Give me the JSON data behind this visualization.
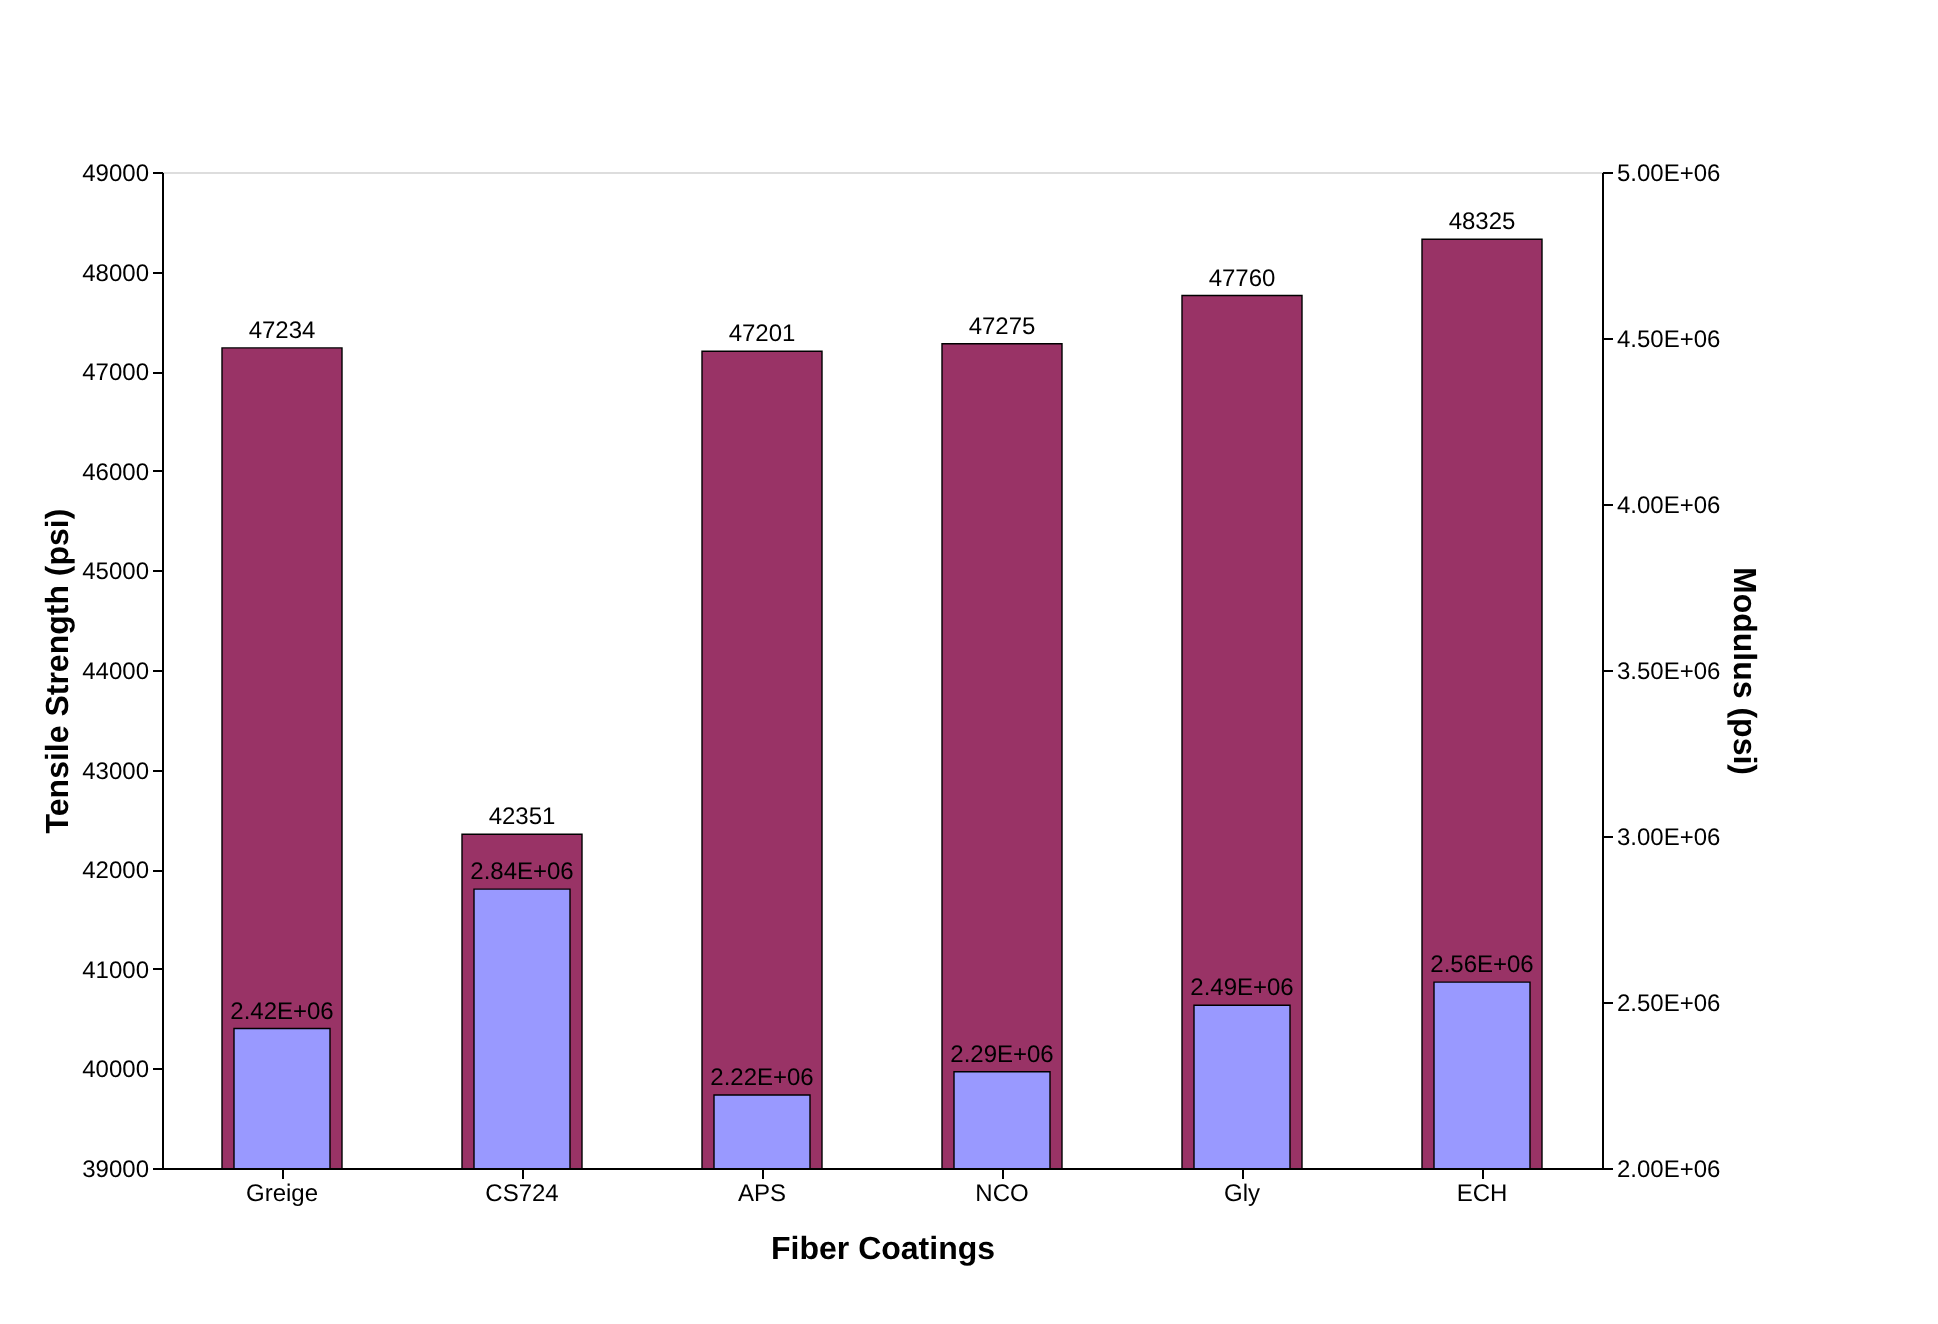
{
  "chart_data": {
    "type": "bar",
    "xlabel": "Fiber Coatings",
    "ylabel": "Tensile Strength (psi)",
    "y2label": "Modulus (psi)",
    "categories": [
      "Greige",
      "CS724",
      "APS",
      "NCO",
      "Gly",
      "ECH"
    ],
    "series": [
      {
        "color": "#993366",
        "values": [
          47234,
          42351,
          47201,
          47275,
          47760,
          48325
        ],
        "value_labels": [
          "47234",
          "42351",
          "47201",
          "47275",
          "47760",
          "48325"
        ]
      },
      {
        "color": "#9999ff",
        "axis": "y2",
        "values": [
          2420000,
          2840000,
          2220000,
          2290000,
          2490000,
          2560000
        ],
        "value_labels": [
          "2.42E+06",
          "2.84E+06",
          "2.22E+06",
          "2.29E+06",
          "2.49E+06",
          "2.56E+06"
        ]
      }
    ],
    "ylim": [
      39000,
      49000
    ],
    "yticks": [
      39000,
      40000,
      41000,
      42000,
      43000,
      44000,
      45000,
      46000,
      47000,
      48000,
      49000
    ],
    "y2lim": [
      2000000,
      5000000
    ],
    "y2ticks": [
      {
        "value": 2000000,
        "label": "2.00E+06"
      },
      {
        "value": 2500000,
        "label": "2.50E+06"
      },
      {
        "value": 3000000,
        "label": "3.00E+06"
      },
      {
        "value": 3500000,
        "label": "3.50E+06"
      },
      {
        "value": 4000000,
        "label": "4.00E+06"
      },
      {
        "value": 4500000,
        "label": "4.50E+06"
      },
      {
        "value": 5000000,
        "label": "5.00E+06"
      }
    ],
    "grid": false
  }
}
